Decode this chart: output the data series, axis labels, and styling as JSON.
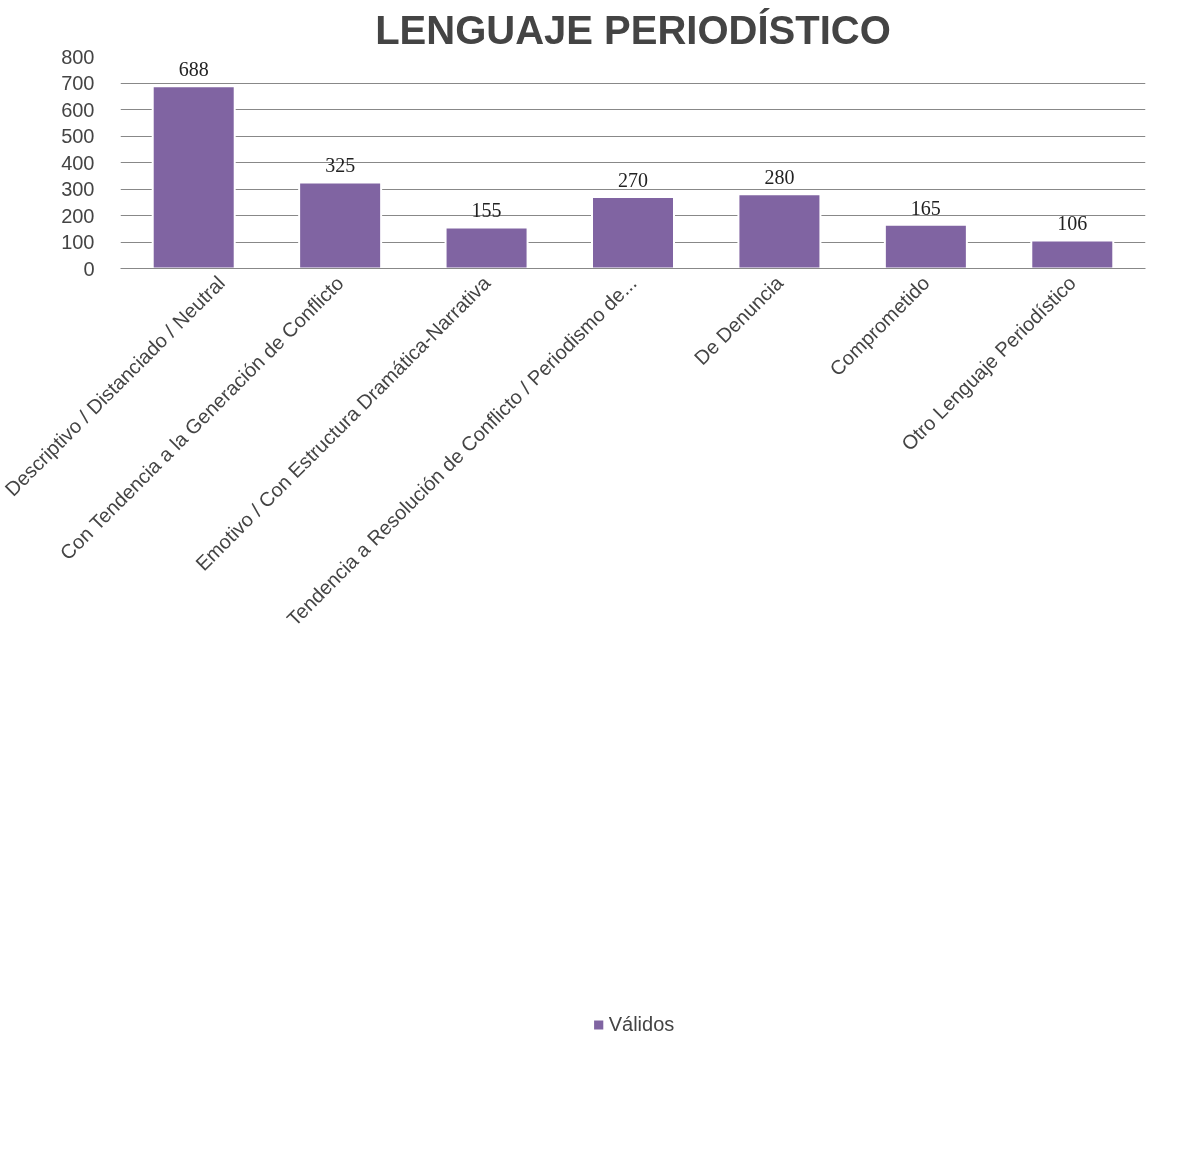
{
  "chart_data": {
    "type": "bar",
    "title": "LENGUAJE PERIODÍSTICO",
    "categories": [
      "Descriptivo / Distanciado / Neutral",
      "Con Tendencia a la Generación de Conflicto",
      "Emotivo / Con Estructura Dramática-Narrativa",
      "Tendencia a Resolución de Conflicto / Periodismo de...",
      "De Denuncia",
      "Comprometido",
      "Otro Lenguaje Periodístico"
    ],
    "series": [
      {
        "name": "Válidos",
        "color": "#8064a2",
        "values": [
          688,
          325,
          155,
          270,
          280,
          165,
          106
        ]
      }
    ],
    "ylim": [
      0,
      800
    ],
    "yticks": [
      0,
      100,
      200,
      300,
      400,
      500,
      600,
      700,
      800
    ],
    "grid": "y",
    "legend": "bottom",
    "data_labels": true
  }
}
